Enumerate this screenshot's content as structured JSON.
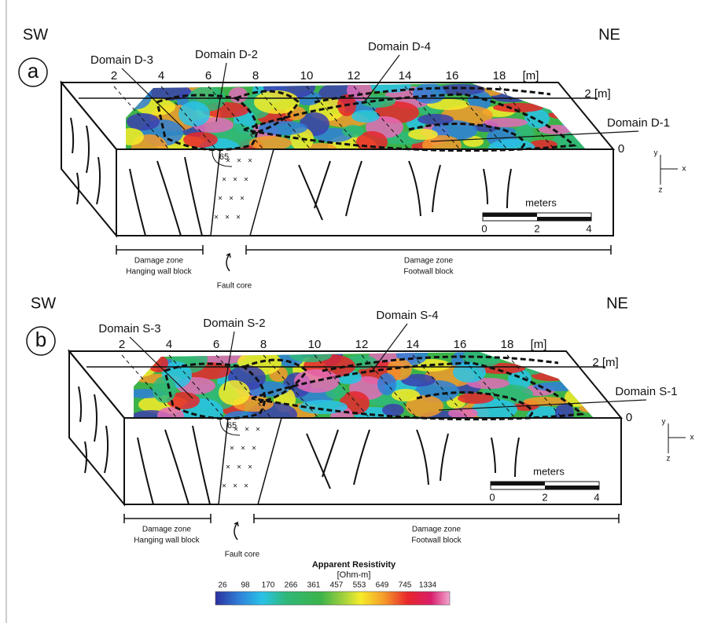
{
  "panels": [
    {
      "label": "a",
      "left": "SW",
      "right": "NE",
      "domains": [
        "Domain D-3",
        "Domain D-2",
        "Domain D-4",
        "Domain D-1"
      ],
      "distance_ticks": [
        "2",
        "4",
        "6",
        "8",
        "10",
        "12",
        "14",
        "16",
        "18"
      ],
      "distance_unit": "[m]",
      "depth_labels": [
        "2 [m]",
        "0"
      ],
      "axes": [
        "y",
        "x",
        "z"
      ],
      "dip": "65",
      "scale": {
        "title": "meters",
        "ticks": [
          "0",
          "2",
          "4"
        ]
      },
      "zones": [
        {
          "title": "Damage zone",
          "subtitle": "Hanging wall block"
        },
        {
          "title": "Fault core"
        },
        {
          "title": "Damage zone",
          "subtitle": "Footwall block"
        }
      ]
    },
    {
      "label": "b",
      "left": "SW",
      "right": "NE",
      "domains": [
        "Domain S-3",
        "Domain S-2",
        "Domain S-4",
        "Domain S-1"
      ],
      "distance_ticks": [
        "2",
        "4",
        "6",
        "8",
        "10",
        "12",
        "14",
        "16",
        "18"
      ],
      "distance_unit": "[m]",
      "depth_labels": [
        "2 [m]",
        "0"
      ],
      "axes": [
        "y",
        "x",
        "z"
      ],
      "dip": "65",
      "scale": {
        "title": "meters",
        "ticks": [
          "0",
          "2",
          "4"
        ]
      },
      "zones": [
        {
          "title": "Damage zone",
          "subtitle": "Hanging wall block"
        },
        {
          "title": "Fault core"
        },
        {
          "title": "Damage zone",
          "subtitle": "Footwall block"
        }
      ]
    }
  ],
  "colorbar": {
    "title": "Apparent Resistivity",
    "unit": "[Ohm-m]",
    "ticks": [
      "26",
      "98",
      "170",
      "266",
      "361",
      "457",
      "553",
      "649",
      "745",
      "1334"
    ]
  }
}
